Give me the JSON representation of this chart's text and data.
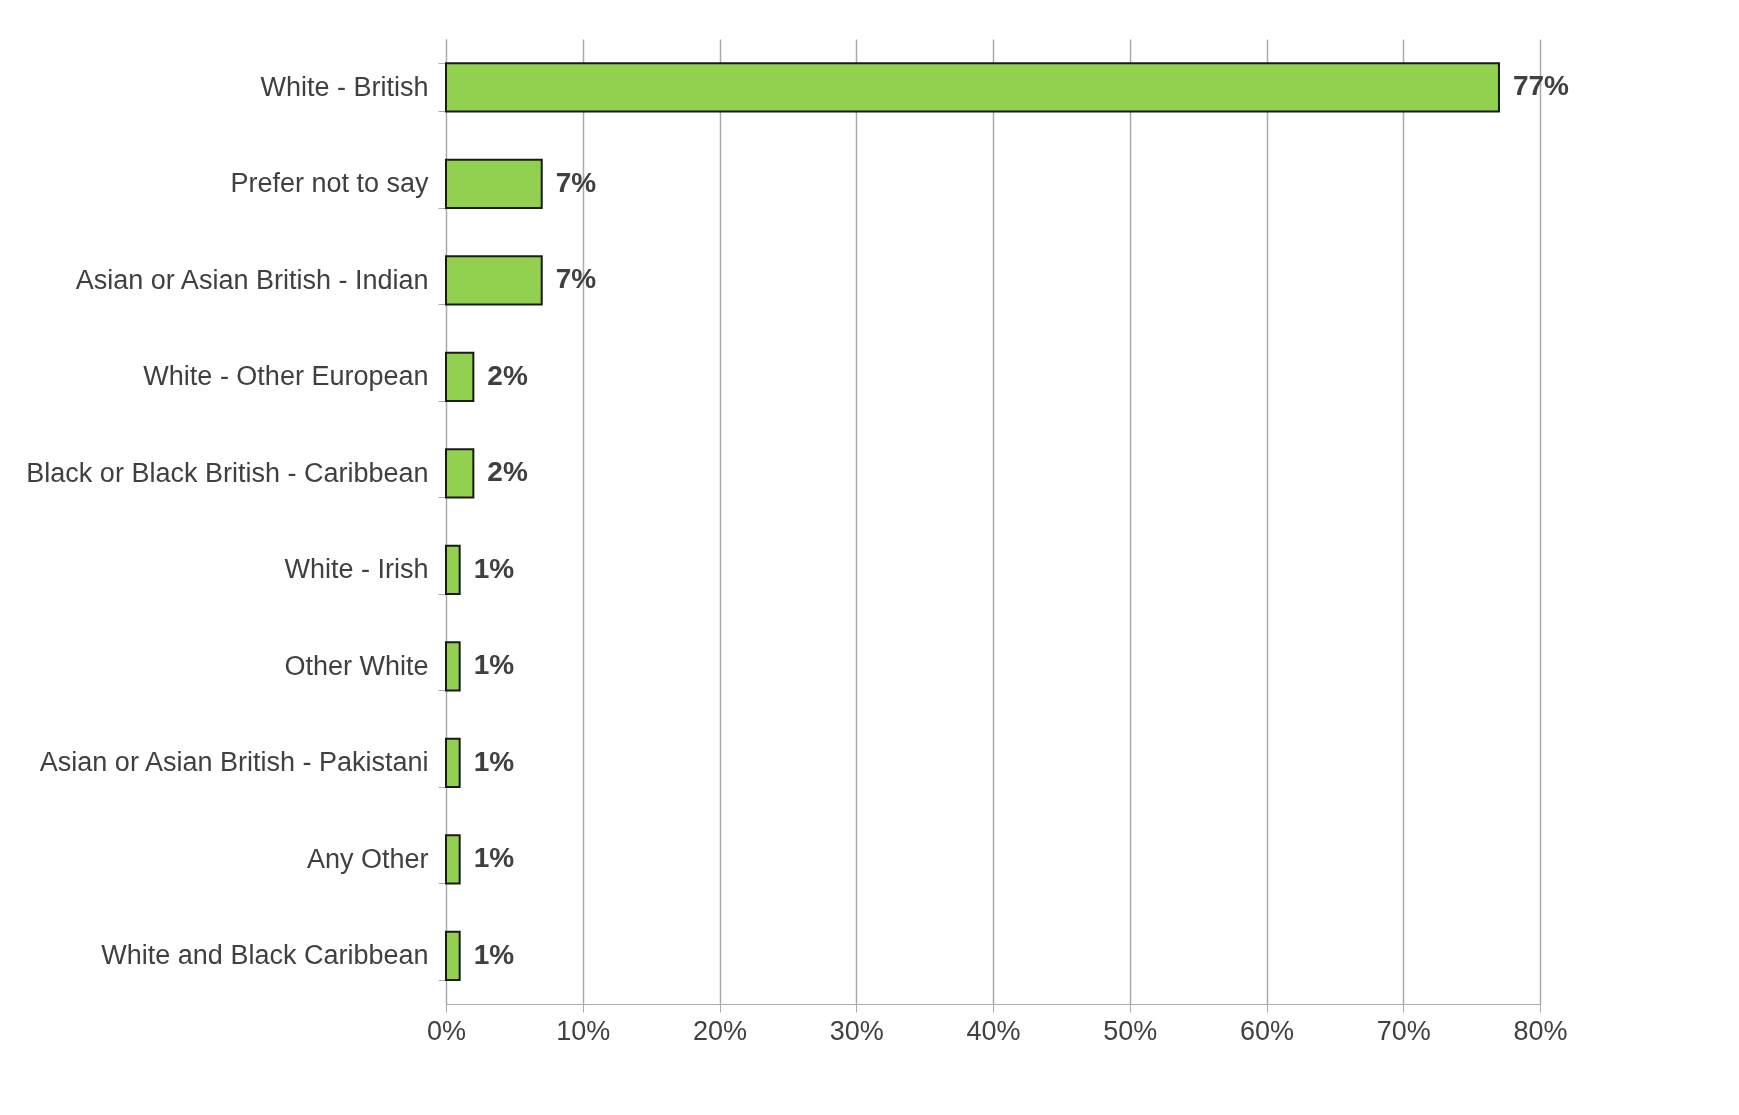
{
  "chart_data": {
    "type": "bar",
    "orientation": "horizontal",
    "categories": [
      "White - British",
      "Prefer not to say",
      "Asian or Asian British - Indian",
      "White - Other European",
      "Black or Black British - Caribbean",
      "White - Irish",
      "Other White",
      "Asian or Asian British - Pakistani",
      "Any Other",
      "White and Black Caribbean"
    ],
    "values": [
      77,
      7,
      7,
      2,
      2,
      1,
      1,
      1,
      1,
      1
    ],
    "value_labels": [
      "77%",
      "7%",
      "7%",
      "2%",
      "2%",
      "1%",
      "1%",
      "1%",
      "1%",
      "1%"
    ],
    "color": "#92d050",
    "xlim": [
      0,
      80
    ],
    "xticks": [
      {
        "value": 0,
        "label": "0%"
      },
      {
        "value": 10,
        "label": "10%"
      },
      {
        "value": 20,
        "label": "20%"
      },
      {
        "value": 30,
        "label": "30%"
      },
      {
        "value": 40,
        "label": "40%"
      },
      {
        "value": 50,
        "label": "50%"
      },
      {
        "value": 60,
        "label": "60%"
      },
      {
        "value": 70,
        "label": "70%"
      },
      {
        "value": 80,
        "label": "80%"
      }
    ],
    "grid": "x"
  }
}
